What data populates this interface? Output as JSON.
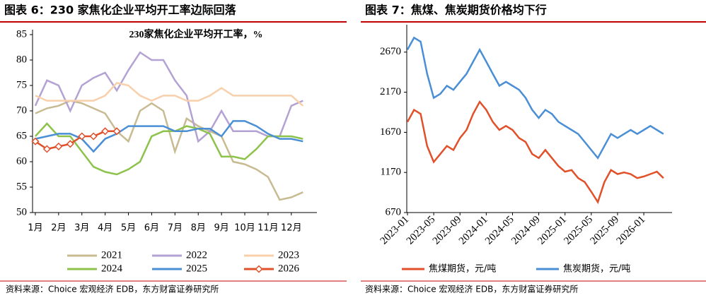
{
  "headings": [
    "图表 6：230 家焦化企业平均开工率边际回落",
    "图表 7：焦煤、焦炭期货价格均下行"
  ],
  "sources": [
    "资料来源：Choice 宏观经济 EDB，东方财富证券研究所",
    "资料来源：Choice 宏观经济 EDB，东方财富证券研究所"
  ],
  "chart_data": [
    {
      "type": "line",
      "title": "230家焦化企业平均开工率，%",
      "x": [
        1,
        1.5,
        2,
        2.5,
        3,
        3.5,
        4,
        4.5,
        5,
        5.5,
        6,
        6.5,
        7,
        7.5,
        8,
        8.5,
        9,
        9.5,
        10,
        10.5,
        11,
        11.5,
        12,
        12.5
      ],
      "xlim": [
        0.88,
        13.1
      ],
      "xticks": [
        {
          "value": 1,
          "label": "1月"
        },
        {
          "value": 2,
          "label": "2月"
        },
        {
          "value": 3,
          "label": "3月"
        },
        {
          "value": 4,
          "label": "4月"
        },
        {
          "value": 5,
          "label": "5月"
        },
        {
          "value": 6,
          "label": "6月"
        },
        {
          "value": 7,
          "label": "7月"
        },
        {
          "value": 8,
          "label": "8月"
        },
        {
          "value": 9,
          "label": "9月"
        },
        {
          "value": 10,
          "label": "10月"
        },
        {
          "value": 11,
          "label": "11月"
        },
        {
          "value": 12,
          "label": "12月"
        }
      ],
      "ylim": [
        50,
        85
      ],
      "yticks": [
        50,
        55,
        60,
        65,
        70,
        75,
        80,
        85
      ],
      "legend": "bottom",
      "series": [
        {
          "name": "2021",
          "color": "#c8bb92",
          "values": [
            69.5,
            70.5,
            71,
            72,
            71.5,
            70.5,
            69.5,
            66,
            64,
            70,
            71.5,
            70,
            62,
            68.5,
            67,
            66,
            65,
            60,
            59.5,
            58.5,
            57,
            52.5,
            53,
            54
          ]
        },
        {
          "name": "2022",
          "color": "#b3a2d3",
          "values": [
            71,
            76,
            75,
            70,
            75,
            76.5,
            77.5,
            74,
            78,
            81.5,
            80,
            80,
            76,
            73,
            64,
            66,
            70,
            66,
            66,
            66,
            65,
            65,
            71,
            72
          ]
        },
        {
          "name": "2023",
          "color": "#f8d0ab",
          "values": [
            73,
            72,
            72,
            72,
            72,
            72,
            73,
            75.5,
            75,
            73,
            72,
            73,
            73,
            72,
            72,
            73,
            74.5,
            73,
            73,
            73,
            73,
            73,
            73,
            71
          ]
        },
        {
          "name": "2024",
          "color": "#8dc24b",
          "values": [
            65,
            67.5,
            65,
            65,
            62,
            59,
            58,
            57.5,
            58.5,
            60,
            65,
            66,
            66,
            67,
            66.5,
            65.5,
            61,
            61,
            60.5,
            62.5,
            65,
            65,
            65,
            64.5
          ]
        },
        {
          "name": "2025",
          "color": "#4a8fd6",
          "values": [
            64.5,
            65,
            65.5,
            65.5,
            64.5,
            62,
            64.5,
            65.5,
            67,
            67,
            67,
            67,
            66,
            66,
            66.5,
            66.5,
            65,
            68,
            68,
            67,
            65.5,
            64.5,
            64.5,
            64
          ]
        },
        {
          "name": "2026",
          "color": "#e0502a",
          "marker": "diamond",
          "values": [
            64,
            62.5,
            63,
            63.5,
            65,
            65,
            66,
            66,
            null,
            null,
            null,
            null,
            null,
            null,
            null,
            null,
            null,
            null,
            null,
            null,
            null,
            null,
            null,
            null
          ]
        }
      ]
    },
    {
      "type": "line",
      "x": [
        "2023-01",
        "2023-02",
        "2023-03",
        "2023-04",
        "2023-05",
        "2023-06",
        "2023-07",
        "2023-08",
        "2023-09",
        "2023-10",
        "2023-11",
        "2023-12",
        "2024-01",
        "2024-02",
        "2024-03",
        "2024-04",
        "2024-05",
        "2024-06",
        "2024-07",
        "2024-08",
        "2024-09",
        "2024-10",
        "2024-11",
        "2024-12",
        "2025-01",
        "2025-02",
        "2025-03",
        "2025-04",
        "2025-05",
        "2025-06",
        "2025-07",
        "2025-08",
        "2025-09",
        "2025-10",
        "2025-11",
        "2025-12",
        "2026-01",
        "2026-02",
        "2026-03",
        "2026-04"
      ],
      "xticks": [
        "2023-01",
        "2023-05",
        "2023-09",
        "2024-01",
        "2024-05",
        "2024-09",
        "2025-01",
        "2025-05",
        "2025-09",
        "2026-01"
      ],
      "ylim": [
        670,
        2950
      ],
      "yticks": [
        670,
        1170,
        1670,
        2170,
        2670
      ],
      "legend": "bottom",
      "series": [
        {
          "name": "焦煤期货，元/吨",
          "color": "#e2502a",
          "values": [
            1800,
            1950,
            1900,
            1500,
            1300,
            1400,
            1500,
            1450,
            1600,
            1700,
            1900,
            2050,
            1950,
            1800,
            1700,
            1750,
            1700,
            1600,
            1550,
            1400,
            1350,
            1450,
            1350,
            1250,
            1180,
            1200,
            1100,
            1050,
            930,
            800,
            1050,
            1200,
            1150,
            1170,
            1150,
            1100,
            1120,
            1150,
            1180,
            1100
          ]
        },
        {
          "name": "焦炭期货，元/吨",
          "color": "#4a8fd6",
          "values": [
            2700,
            2850,
            2800,
            2400,
            2100,
            2150,
            2250,
            2200,
            2300,
            2400,
            2550,
            2700,
            2550,
            2400,
            2250,
            2300,
            2250,
            2200,
            2100,
            1950,
            1850,
            1950,
            1900,
            1800,
            1750,
            1700,
            1650,
            1550,
            1450,
            1350,
            1500,
            1650,
            1600,
            1650,
            1700,
            1650,
            1700,
            1750,
            1700,
            1650
          ]
        }
      ]
    }
  ]
}
